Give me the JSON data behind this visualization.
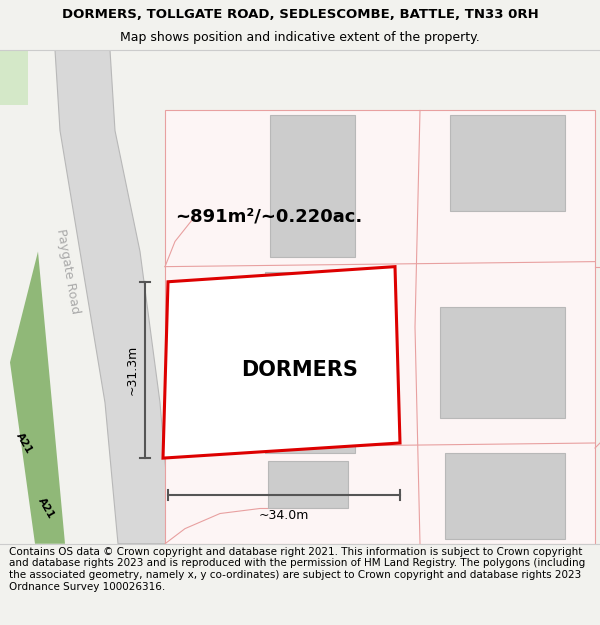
{
  "title_line1": "DORMERS, TOLLGATE ROAD, SEDLESCOMBE, BATTLE, TN33 0RH",
  "title_line2": "Map shows position and indicative extent of the property.",
  "footer_text": "Contains OS data © Crown copyright and database right 2021. This information is subject to Crown copyright and database rights 2023 and is reproduced with the permission of HM Land Registry. The polygons (including the associated geometry, namely x, y co-ordinates) are subject to Crown copyright and database rights 2023 Ordnance Survey 100026316.",
  "property_label": "DORMERS",
  "area_label": "~891m²/~0.220ac.",
  "width_label": "~34.0m",
  "height_label": "~31.3m",
  "road_label": "Paygate Road",
  "a21_label_1": "A21",
  "a21_label_2": "A21",
  "bg_color": "#f2f2ee",
  "map_bg": "#ffffff",
  "gray_bld": "#cccccc",
  "pink_edge": "#e8a0a0",
  "pink_fill": "#fce8e8",
  "red_outline": "#dd0000",
  "green_road": "#90b878",
  "road_gray": "#d8d8d8",
  "road_edge": "#b8b8b8",
  "dim_color": "#555555",
  "title_fs": 9.5,
  "subtitle_fs": 9,
  "footer_fs": 7.5,
  "prop_label_fs": 15,
  "area_label_fs": 13,
  "dim_fs": 9,
  "road_label_fs": 9
}
